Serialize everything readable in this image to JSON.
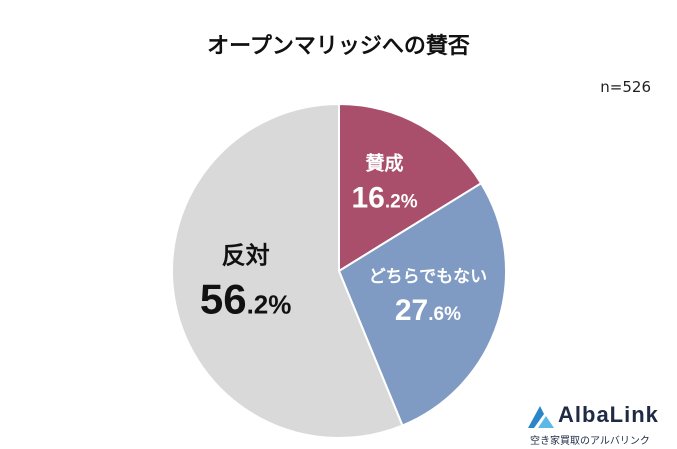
{
  "chart_data": {
    "type": "pie",
    "title": "オープンマリッジへの賛否",
    "note": "n=526",
    "start_angle_deg": 0,
    "direction": "clockwise",
    "slices": [
      {
        "label": "賛成",
        "value": 16.2,
        "display_int": "16",
        "display_dec": ".2%",
        "color": "#a94f6c"
      },
      {
        "label": "どちらでもない",
        "value": 27.6,
        "display_int": "27",
        "display_dec": ".6%",
        "color": "#7f9bc3"
      },
      {
        "label": "反対",
        "value": 56.2,
        "display_int": "56",
        "display_dec": ".2%",
        "color": "#d9d9d9"
      }
    ]
  },
  "logo": {
    "name": "AlbaLink",
    "tagline": "空き家買取のアルバリンク",
    "colors": [
      "#2a86c8",
      "#5bb8e8"
    ]
  }
}
